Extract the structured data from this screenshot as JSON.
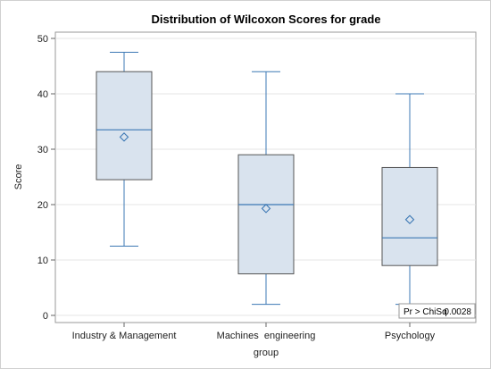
{
  "chart_data": {
    "type": "box",
    "title": "Distribution of Wilcoxon Scores for grade",
    "xlabel": "group",
    "ylabel": "Score",
    "ylim": [
      0,
      50
    ],
    "yticks": [
      0,
      10,
      20,
      30,
      40,
      50
    ],
    "grid": true,
    "categories": [
      "Industry & Management",
      "Machines  engineering",
      "Psychology"
    ],
    "boxes": [
      {
        "category": "Industry & Management",
        "min": 12.5,
        "q1": 24.5,
        "median": 33.5,
        "q3": 44,
        "max": 47.5,
        "mean": 32.2
      },
      {
        "category": "Machines  engineering",
        "min": 2,
        "q1": 7.5,
        "median": 20,
        "q3": 29,
        "max": 44,
        "mean": 19.3
      },
      {
        "category": "Psychology",
        "min": 2,
        "q1": 9,
        "median": 14,
        "q3": 26.7,
        "max": 40,
        "mean": 17.3
      }
    ],
    "stat": {
      "label": "Pr > ChiSq",
      "value": "0.0028"
    },
    "colors": {
      "box_fill": "#d9e3ee",
      "line": "#3c78b4",
      "grid": "#e6e6e6",
      "axis": "#999999"
    }
  }
}
